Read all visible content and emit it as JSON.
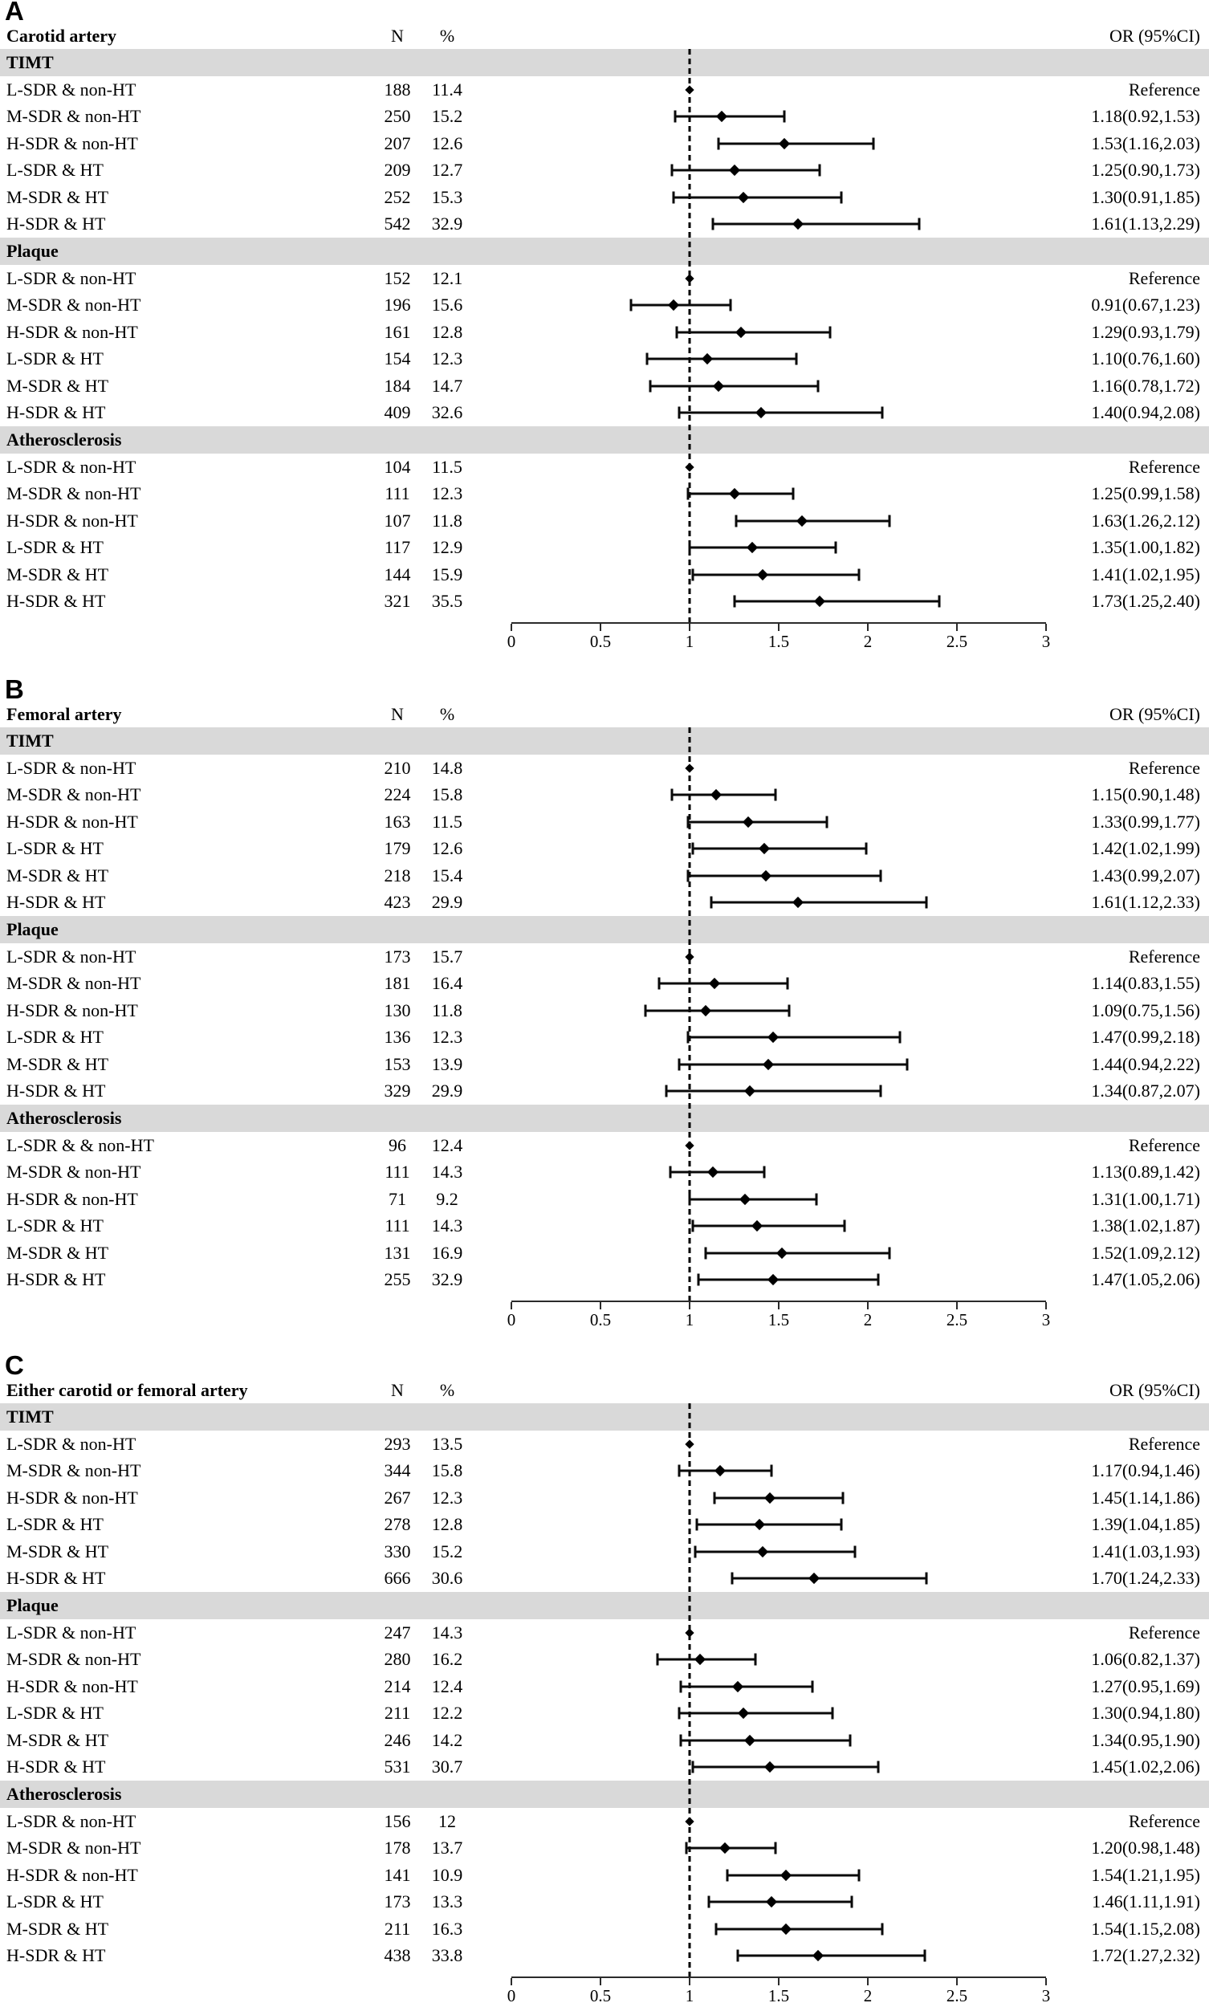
{
  "chart_data": {
    "type": "scatter",
    "variant": "forest-plot",
    "legend": "none",
    "grid": false,
    "colors": {
      "marker": "#000000",
      "band": "#d9d9d9",
      "text": "#000000",
      "line": "#2b2b2b"
    },
    "columns": {
      "n": "N",
      "pct": "%",
      "or": "OR (95%CI)"
    },
    "axis": {
      "orientation": "horizontal",
      "min": 0,
      "max": 3,
      "reference_line": 1,
      "ticks": [
        "0",
        "0.5",
        "1",
        "1.5",
        "2",
        "2.5",
        "3"
      ]
    },
    "panels": [
      {
        "label": "A",
        "title": "Carotid artery",
        "sections": [
          {
            "name": "TIMT",
            "rows": [
              {
                "label": "L-SDR & non-HT",
                "n": "188",
                "pct": "11.4",
                "or_text": "Reference",
                "or": 1.0,
                "lo": null,
                "hi": null
              },
              {
                "label": "M-SDR & non-HT",
                "n": "250",
                "pct": "15.2",
                "or_text": "1.18(0.92,1.53)",
                "or": 1.18,
                "lo": 0.92,
                "hi": 1.53
              },
              {
                "label": "H-SDR & non-HT",
                "n": "207",
                "pct": "12.6",
                "or_text": "1.53(1.16,2.03)",
                "or": 1.53,
                "lo": 1.16,
                "hi": 2.03
              },
              {
                "label": "L-SDR & HT",
                "n": "209",
                "pct": "12.7",
                "or_text": "1.25(0.90,1.73)",
                "or": 1.25,
                "lo": 0.9,
                "hi": 1.73
              },
              {
                "label": "M-SDR & HT",
                "n": "252",
                "pct": "15.3",
                "or_text": "1.30(0.91,1.85)",
                "or": 1.3,
                "lo": 0.91,
                "hi": 1.85
              },
              {
                "label": "H-SDR & HT",
                "n": "542",
                "pct": "32.9",
                "or_text": "1.61(1.13,2.29)",
                "or": 1.61,
                "lo": 1.13,
                "hi": 2.29
              }
            ]
          },
          {
            "name": "Plaque",
            "rows": [
              {
                "label": "L-SDR & non-HT",
                "n": "152",
                "pct": "12.1",
                "or_text": "Reference",
                "or": 1.0,
                "lo": null,
                "hi": null
              },
              {
                "label": "M-SDR & non-HT",
                "n": "196",
                "pct": "15.6",
                "or_text": "0.91(0.67,1.23)",
                "or": 0.91,
                "lo": 0.67,
                "hi": 1.23
              },
              {
                "label": "H-SDR & non-HT",
                "n": "161",
                "pct": "12.8",
                "or_text": "1.29(0.93,1.79)",
                "or": 1.29,
                "lo": 0.93,
                "hi": 1.79
              },
              {
                "label": "L-SDR & HT",
                "n": "154",
                "pct": "12.3",
                "or_text": "1.10(0.76,1.60)",
                "or": 1.1,
                "lo": 0.76,
                "hi": 1.6
              },
              {
                "label": "M-SDR & HT",
                "n": "184",
                "pct": "14.7",
                "or_text": "1.16(0.78,1.72)",
                "or": 1.16,
                "lo": 0.78,
                "hi": 1.72
              },
              {
                "label": "H-SDR & HT",
                "n": "409",
                "pct": "32.6",
                "or_text": "1.40(0.94,2.08)",
                "or": 1.4,
                "lo": 0.94,
                "hi": 2.08
              }
            ]
          },
          {
            "name": "Atherosclerosis",
            "rows": [
              {
                "label": "L-SDR & non-HT",
                "n": "104",
                "pct": "11.5",
                "or_text": "Reference",
                "or": 1.0,
                "lo": null,
                "hi": null
              },
              {
                "label": "M-SDR & non-HT",
                "n": "111",
                "pct": "12.3",
                "or_text": "1.25(0.99,1.58)",
                "or": 1.25,
                "lo": 0.99,
                "hi": 1.58
              },
              {
                "label": "H-SDR & non-HT",
                "n": "107",
                "pct": "11.8",
                "or_text": "1.63(1.26,2.12)",
                "or": 1.63,
                "lo": 1.26,
                "hi": 2.12
              },
              {
                "label": "L-SDR & HT",
                "n": "117",
                "pct": "12.9",
                "or_text": "1.35(1.00,1.82)",
                "or": 1.35,
                "lo": 1.0,
                "hi": 1.82
              },
              {
                "label": "M-SDR & HT",
                "n": "144",
                "pct": "15.9",
                "or_text": "1.41(1.02,1.95)",
                "or": 1.41,
                "lo": 1.02,
                "hi": 1.95
              },
              {
                "label": "H-SDR & HT",
                "n": "321",
                "pct": "35.5",
                "or_text": "1.73(1.25,2.40)",
                "or": 1.73,
                "lo": 1.25,
                "hi": 2.4
              }
            ]
          }
        ]
      },
      {
        "label": "B",
        "title": "Femoral artery",
        "sections": [
          {
            "name": "TIMT",
            "rows": [
              {
                "label": "L-SDR & non-HT",
                "n": "210",
                "pct": "14.8",
                "or_text": "Reference",
                "or": 1.0,
                "lo": null,
                "hi": null
              },
              {
                "label": "M-SDR & non-HT",
                "n": "224",
                "pct": "15.8",
                "or_text": "1.15(0.90,1.48)",
                "or": 1.15,
                "lo": 0.9,
                "hi": 1.48
              },
              {
                "label": "H-SDR & non-HT",
                "n": "163",
                "pct": "11.5",
                "or_text": "1.33(0.99,1.77)",
                "or": 1.33,
                "lo": 0.99,
                "hi": 1.77
              },
              {
                "label": "L-SDR & HT",
                "n": "179",
                "pct": "12.6",
                "or_text": "1.42(1.02,1.99)",
                "or": 1.42,
                "lo": 1.02,
                "hi": 1.99
              },
              {
                "label": "M-SDR & HT",
                "n": "218",
                "pct": "15.4",
                "or_text": "1.43(0.99,2.07)",
                "or": 1.43,
                "lo": 0.99,
                "hi": 2.07
              },
              {
                "label": "H-SDR & HT",
                "n": "423",
                "pct": "29.9",
                "or_text": "1.61(1.12,2.33)",
                "or": 1.61,
                "lo": 1.12,
                "hi": 2.33
              }
            ]
          },
          {
            "name": "Plaque",
            "rows": [
              {
                "label": "L-SDR & non-HT",
                "n": "173",
                "pct": "15.7",
                "or_text": "Reference",
                "or": 1.0,
                "lo": null,
                "hi": null
              },
              {
                "label": "M-SDR & non-HT",
                "n": "181",
                "pct": "16.4",
                "or_text": "1.14(0.83,1.55)",
                "or": 1.14,
                "lo": 0.83,
                "hi": 1.55
              },
              {
                "label": "H-SDR & non-HT",
                "n": "130",
                "pct": "11.8",
                "or_text": "1.09(0.75,1.56)",
                "or": 1.09,
                "lo": 0.75,
                "hi": 1.56
              },
              {
                "label": "L-SDR & HT",
                "n": "136",
                "pct": "12.3",
                "or_text": "1.47(0.99,2.18)",
                "or": 1.47,
                "lo": 0.99,
                "hi": 2.18
              },
              {
                "label": "M-SDR & HT",
                "n": "153",
                "pct": "13.9",
                "or_text": "1.44(0.94,2.22)",
                "or": 1.44,
                "lo": 0.94,
                "hi": 2.22
              },
              {
                "label": "H-SDR & HT",
                "n": "329",
                "pct": "29.9",
                "or_text": "1.34(0.87,2.07)",
                "or": 1.34,
                "lo": 0.87,
                "hi": 2.07
              }
            ]
          },
          {
            "name": "Atherosclerosis",
            "rows": [
              {
                "label": "L-SDR & & non-HT",
                "n": "96",
                "pct": "12.4",
                "or_text": "Reference",
                "or": 1.0,
                "lo": null,
                "hi": null
              },
              {
                "label": "M-SDR & non-HT",
                "n": "111",
                "pct": "14.3",
                "or_text": "1.13(0.89,1.42)",
                "or": 1.13,
                "lo": 0.89,
                "hi": 1.42
              },
              {
                "label": "H-SDR & non-HT",
                "n": "71",
                "pct": "9.2",
                "or_text": "1.31(1.00,1.71)",
                "or": 1.31,
                "lo": 1.0,
                "hi": 1.71
              },
              {
                "label": "L-SDR & HT",
                "n": "111",
                "pct": "14.3",
                "or_text": "1.38(1.02,1.87)",
                "or": 1.38,
                "lo": 1.02,
                "hi": 1.87
              },
              {
                "label": "M-SDR & HT",
                "n": "131",
                "pct": "16.9",
                "or_text": "1.52(1.09,2.12)",
                "or": 1.52,
                "lo": 1.09,
                "hi": 2.12
              },
              {
                "label": "H-SDR & HT",
                "n": "255",
                "pct": "32.9",
                "or_text": "1.47(1.05,2.06)",
                "or": 1.47,
                "lo": 1.05,
                "hi": 2.06
              }
            ]
          }
        ]
      },
      {
        "label": "C",
        "title": "Either carotid or femoral artery",
        "sections": [
          {
            "name": "TIMT",
            "rows": [
              {
                "label": "L-SDR & non-HT",
                "n": "293",
                "pct": "13.5",
                "or_text": "Reference",
                "or": 1.0,
                "lo": null,
                "hi": null
              },
              {
                "label": "M-SDR & non-HT",
                "n": "344",
                "pct": "15.8",
                "or_text": "1.17(0.94,1.46)",
                "or": 1.17,
                "lo": 0.94,
                "hi": 1.46
              },
              {
                "label": "H-SDR & non-HT",
                "n": "267",
                "pct": "12.3",
                "or_text": "1.45(1.14,1.86)",
                "or": 1.45,
                "lo": 1.14,
                "hi": 1.86
              },
              {
                "label": "L-SDR & HT",
                "n": "278",
                "pct": "12.8",
                "or_text": "1.39(1.04,1.85)",
                "or": 1.39,
                "lo": 1.04,
                "hi": 1.85
              },
              {
                "label": "M-SDR & HT",
                "n": "330",
                "pct": "15.2",
                "or_text": "1.41(1.03,1.93)",
                "or": 1.41,
                "lo": 1.03,
                "hi": 1.93
              },
              {
                "label": "H-SDR & HT",
                "n": "666",
                "pct": "30.6",
                "or_text": "1.70(1.24,2.33)",
                "or": 1.7,
                "lo": 1.24,
                "hi": 2.33
              }
            ]
          },
          {
            "name": "Plaque",
            "rows": [
              {
                "label": "L-SDR & non-HT",
                "n": "247",
                "pct": "14.3",
                "or_text": "Reference",
                "or": 1.0,
                "lo": null,
                "hi": null
              },
              {
                "label": "M-SDR & non-HT",
                "n": "280",
                "pct": "16.2",
                "or_text": "1.06(0.82,1.37)",
                "or": 1.06,
                "lo": 0.82,
                "hi": 1.37
              },
              {
                "label": "H-SDR & non-HT",
                "n": "214",
                "pct": "12.4",
                "or_text": "1.27(0.95,1.69)",
                "or": 1.27,
                "lo": 0.95,
                "hi": 1.69
              },
              {
                "label": "L-SDR & HT",
                "n": "211",
                "pct": "12.2",
                "or_text": "1.30(0.94,1.80)",
                "or": 1.3,
                "lo": 0.94,
                "hi": 1.8
              },
              {
                "label": "M-SDR & HT",
                "n": "246",
                "pct": "14.2",
                "or_text": "1.34(0.95,1.90)",
                "or": 1.34,
                "lo": 0.95,
                "hi": 1.9
              },
              {
                "label": "H-SDR & HT",
                "n": "531",
                "pct": "30.7",
                "or_text": "1.45(1.02,2.06)",
                "or": 1.45,
                "lo": 1.02,
                "hi": 2.06
              }
            ]
          },
          {
            "name": "Atherosclerosis",
            "rows": [
              {
                "label": "L-SDR & non-HT",
                "n": "156",
                "pct": "12",
                "or_text": "Reference",
                "or": 1.0,
                "lo": null,
                "hi": null
              },
              {
                "label": "M-SDR & non-HT",
                "n": "178",
                "pct": "13.7",
                "or_text": "1.20(0.98,1.48)",
                "or": 1.2,
                "lo": 0.98,
                "hi": 1.48
              },
              {
                "label": "H-SDR & non-HT",
                "n": "141",
                "pct": "10.9",
                "or_text": "1.54(1.21,1.95)",
                "or": 1.54,
                "lo": 1.21,
                "hi": 1.95
              },
              {
                "label": "L-SDR & HT",
                "n": "173",
                "pct": "13.3",
                "or_text": "1.46(1.11,1.91)",
                "or": 1.46,
                "lo": 1.11,
                "hi": 1.91
              },
              {
                "label": "M-SDR & HT",
                "n": "211",
                "pct": "16.3",
                "or_text": "1.54(1.15,2.08)",
                "or": 1.54,
                "lo": 1.15,
                "hi": 2.08
              },
              {
                "label": "H-SDR & HT",
                "n": "438",
                "pct": "33.8",
                "or_text": "1.72(1.27,2.32)",
                "or": 1.72,
                "lo": 1.27,
                "hi": 2.32
              }
            ]
          }
        ]
      }
    ]
  }
}
